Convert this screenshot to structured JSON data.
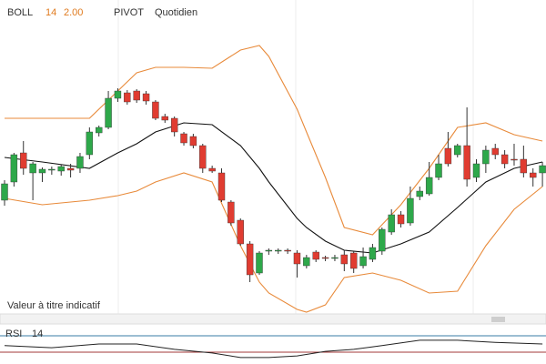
{
  "chart_data": [
    {
      "type": "candlestick",
      "indicator": {
        "name": "BOLL",
        "period": 14,
        "deviation": "2.00"
      },
      "pivot": {
        "name": "PIVOT",
        "period": "Quotidien"
      },
      "annotation": "Valeur à titre indicatif",
      "up_color": "#2ea84a",
      "down_color": "#e03c31",
      "ylim": [
        0,
        345
      ],
      "open": [
        125,
        145,
        177,
        155,
        155,
        158,
        157,
        160,
        160,
        175,
        199,
        205,
        237,
        243,
        245,
        242,
        233,
        217,
        215,
        198,
        195,
        185,
        160,
        155,
        123,
        103,
        77,
        45,
        69,
        69,
        70,
        67,
        53,
        68,
        62,
        61,
        65,
        67,
        53,
        60,
        69,
        90,
        109,
        100,
        129,
        132,
        150,
        182,
        175,
        185,
        150,
        165,
        182,
        175,
        170,
        170,
        155,
        155
      ],
      "high": [
        147,
        177,
        190,
        167,
        161,
        162,
        164,
        165,
        177,
        205,
        207,
        245,
        248,
        246,
        247,
        245,
        235,
        220,
        217,
        200,
        198,
        187,
        163,
        160,
        125,
        105,
        80,
        69,
        72,
        72,
        72,
        70,
        65,
        70,
        64,
        65,
        70,
        69,
        73,
        77,
        95,
        115,
        113,
        140,
        140,
        167,
        175,
        200,
        187,
        227,
        170,
        185,
        187,
        180,
        187,
        185,
        160,
        167
      ],
      "low": [
        119,
        140,
        153,
        125,
        145,
        153,
        152,
        150,
        155,
        170,
        195,
        203,
        233,
        230,
        232,
        230,
        213,
        210,
        195,
        185,
        182,
        155,
        155,
        123,
        97,
        75,
        35,
        43,
        65,
        66,
        66,
        40,
        50,
        57,
        58,
        58,
        47,
        45,
        50,
        57,
        65,
        87,
        95,
        97,
        125,
        130,
        147,
        162,
        172,
        140,
        145,
        155,
        170,
        160,
        163,
        150,
        140,
        140
      ],
      "close": [
        143,
        175,
        160,
        165,
        159,
        159,
        162,
        158,
        173,
        200,
        205,
        237,
        245,
        233,
        235,
        234,
        215,
        213,
        200,
        188,
        185,
        160,
        157,
        125,
        100,
        77,
        43,
        67,
        70,
        70,
        69,
        55,
        62,
        60,
        61,
        62,
        55,
        50,
        63,
        73,
        93,
        109,
        99,
        127,
        135,
        150,
        165,
        165,
        185,
        148,
        165,
        180,
        175,
        165,
        169,
        155,
        150,
        163
      ],
      "bands": {
        "color": "#e88a3a",
        "middle_color": "#111111",
        "x": [
          0,
          4,
          9,
          12,
          14,
          16,
          19,
          22,
          25,
          27,
          28,
          31,
          32,
          34,
          36,
          39,
          42,
          45,
          48,
          51,
          54,
          57
        ],
        "upper": [
          215,
          215,
          215,
          245,
          265,
          271,
          271,
          270,
          290,
          295,
          283,
          225,
          200,
          150,
          95,
          87,
          120,
          160,
          205,
          210,
          197,
          190
        ],
        "middle": [
          172,
          167,
          160,
          177,
          187,
          200,
          210,
          208,
          185,
          160,
          145,
          105,
          95,
          80,
          70,
          67,
          77,
          90,
          117,
          145,
          160,
          167
        ],
        "lower": [
          127,
          120,
          125,
          130,
          135,
          145,
          155,
          145,
          75,
          35,
          23,
          5,
          2,
          10,
          40,
          45,
          37,
          23,
          25,
          75,
          115,
          140
        ]
      }
    },
    {
      "type": "line",
      "title": "RSI",
      "period": 14,
      "color": "#222222",
      "ylim": [
        0,
        100
      ],
      "x": [
        0,
        5,
        10,
        14,
        18,
        22,
        25,
        28,
        31,
        34,
        37,
        40,
        44,
        48,
        52,
        57
      ],
      "values": [
        46,
        41,
        50,
        50,
        37,
        28,
        17,
        17,
        21,
        32,
        37,
        46,
        59,
        59,
        54,
        50
      ],
      "levels": [
        {
          "value": 70,
          "color": "#3a7ca5"
        },
        {
          "value": 30,
          "color": "#a33a3a"
        }
      ]
    }
  ]
}
